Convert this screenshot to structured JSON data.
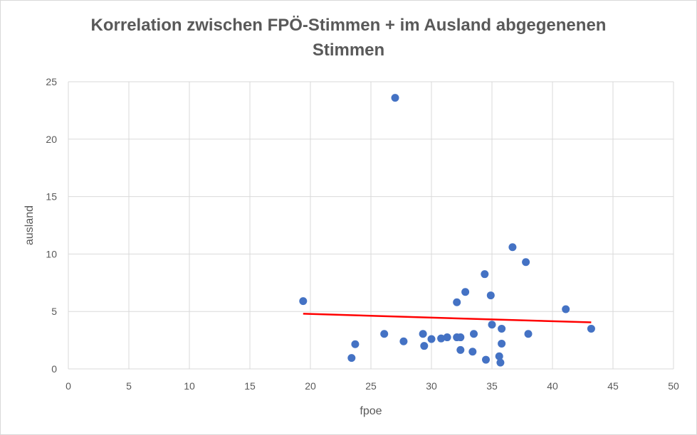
{
  "title_line1": "Korrelation zwischen FPÖ-Stimmen + im Ausland abgegenenen",
  "title_line2": "Stimmen",
  "colors": {
    "point": "#4472c4",
    "trend": "#ff0000",
    "grid": "#d9d9d9",
    "text": "#595959"
  },
  "chart_data": {
    "type": "scatter",
    "title": "Korrelation zwischen FPÖ-Stimmen + im Ausland abgegenenen Stimmen",
    "xlabel": "fpoe",
    "ylabel": "ausland",
    "xlim": [
      0,
      50
    ],
    "ylim": [
      0,
      25
    ],
    "xticks": [
      "0",
      "5",
      "10",
      "15",
      "20",
      "25",
      "30",
      "35",
      "40",
      "45",
      "50"
    ],
    "yticks": [
      "0",
      "5",
      "10",
      "15",
      "20",
      "25"
    ],
    "grid": true,
    "legend": "none",
    "points": [
      {
        "x": 19.4,
        "y": 5.9
      },
      {
        "x": 23.4,
        "y": 0.95
      },
      {
        "x": 23.7,
        "y": 2.15
      },
      {
        "x": 26.1,
        "y": 3.05
      },
      {
        "x": 27.0,
        "y": 23.6
      },
      {
        "x": 27.7,
        "y": 2.4
      },
      {
        "x": 29.3,
        "y": 3.05
      },
      {
        "x": 29.4,
        "y": 2.0
      },
      {
        "x": 30.0,
        "y": 2.6
      },
      {
        "x": 30.8,
        "y": 2.65
      },
      {
        "x": 31.3,
        "y": 2.75
      },
      {
        "x": 32.1,
        "y": 5.8
      },
      {
        "x": 32.1,
        "y": 2.75
      },
      {
        "x": 32.4,
        "y": 2.75
      },
      {
        "x": 32.4,
        "y": 1.65
      },
      {
        "x": 32.8,
        "y": 6.7
      },
      {
        "x": 33.4,
        "y": 1.5
      },
      {
        "x": 33.5,
        "y": 3.05
      },
      {
        "x": 34.4,
        "y": 8.25
      },
      {
        "x": 34.5,
        "y": 0.8
      },
      {
        "x": 34.9,
        "y": 6.4
      },
      {
        "x": 35.0,
        "y": 3.85
      },
      {
        "x": 35.6,
        "y": 1.1
      },
      {
        "x": 35.7,
        "y": 0.55
      },
      {
        "x": 35.8,
        "y": 3.5
      },
      {
        "x": 35.8,
        "y": 2.2
      },
      {
        "x": 36.7,
        "y": 10.6
      },
      {
        "x": 37.8,
        "y": 9.3
      },
      {
        "x": 38.0,
        "y": 3.05
      },
      {
        "x": 41.1,
        "y": 5.2
      },
      {
        "x": 43.2,
        "y": 3.5
      }
    ],
    "trendline": {
      "x": [
        19.4,
        43.2
      ],
      "y": [
        4.8,
        4.05
      ]
    }
  }
}
